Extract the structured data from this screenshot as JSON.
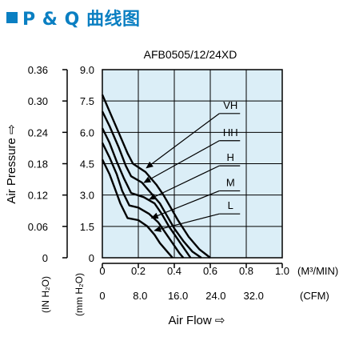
{
  "header": {
    "title": "P & Q 曲线图",
    "accent_color": "#0a7fc2"
  },
  "chart_data": {
    "type": "line",
    "title": "AFB0505/12/24XD",
    "plot_background": "#dbeef7",
    "grid": true,
    "x_axis": {
      "ticks_m3min": [
        "0",
        "0.2",
        "0.4",
        "0.6",
        "0.8",
        "1.0"
      ],
      "unit_m3min": "(M³/MIN)",
      "ticks_cfm": [
        "0",
        "8.0",
        "16.0",
        "24.0",
        "32.0"
      ],
      "unit_cfm": "(CFM)",
      "label": "Air Flow ⇨",
      "range_m3min": [
        0,
        1.0
      ]
    },
    "y_axis": {
      "ticks_inh2o": [
        "0.36",
        "0.30",
        "0.24",
        "0.18",
        "0.12",
        "0.06",
        "0"
      ],
      "unit_inh2o": "(IN H₂O)",
      "ticks_mmh2o": [
        "9.0",
        "7.5",
        "6.0",
        "4.5",
        "3.0",
        "1.5",
        "0"
      ],
      "unit_mmh2o": "(mm H₂O)",
      "label": "Air Pressure ⇨",
      "range_mmh2o": [
        0,
        9.0
      ]
    },
    "series": [
      {
        "name": "VH",
        "label_pos": [
          0.65,
          6.9
        ],
        "arrow_to": [
          0.245,
          4.3
        ],
        "points": [
          [
            0,
            7.8
          ],
          [
            0.04,
            7.0
          ],
          [
            0.09,
            6.0
          ],
          [
            0.14,
            5.0
          ],
          [
            0.17,
            4.5
          ],
          [
            0.24,
            4.1
          ],
          [
            0.3,
            3.5
          ],
          [
            0.34,
            3.0
          ],
          [
            0.38,
            2.4
          ],
          [
            0.42,
            1.8
          ],
          [
            0.48,
            1.0
          ],
          [
            0.54,
            0.4
          ],
          [
            0.6,
            0
          ]
        ]
      },
      {
        "name": "HH",
        "label_pos": [
          0.65,
          5.6
        ],
        "arrow_to": [
          0.232,
          3.6
        ],
        "points": [
          [
            0,
            7.0
          ],
          [
            0.04,
            6.3
          ],
          [
            0.09,
            5.3
          ],
          [
            0.13,
            4.4
          ],
          [
            0.16,
            3.9
          ],
          [
            0.22,
            3.6
          ],
          [
            0.28,
            3.0
          ],
          [
            0.32,
            2.6
          ],
          [
            0.36,
            2.0
          ],
          [
            0.4,
            1.4
          ],
          [
            0.45,
            0.8
          ],
          [
            0.5,
            0.3
          ],
          [
            0.55,
            0
          ]
        ]
      },
      {
        "name": "H",
        "label_pos": [
          0.65,
          4.4
        ],
        "arrow_to": [
          0.262,
          2.8
        ],
        "points": [
          [
            0,
            6.2
          ],
          [
            0.04,
            5.5
          ],
          [
            0.08,
            4.6
          ],
          [
            0.12,
            3.8
          ],
          [
            0.16,
            3.1
          ],
          [
            0.23,
            2.9
          ],
          [
            0.29,
            2.6
          ],
          [
            0.33,
            2.1
          ],
          [
            0.37,
            1.5
          ],
          [
            0.41,
            1.0
          ],
          [
            0.45,
            0.5
          ],
          [
            0.49,
            0
          ]
        ]
      },
      {
        "name": "M",
        "label_pos": [
          0.65,
          3.2
        ],
        "arrow_to": [
          0.274,
          1.9
        ],
        "points": [
          [
            0,
            5.5
          ],
          [
            0.04,
            4.8
          ],
          [
            0.08,
            4.0
          ],
          [
            0.11,
            3.2
          ],
          [
            0.15,
            2.5
          ],
          [
            0.2,
            2.4
          ],
          [
            0.26,
            2.1
          ],
          [
            0.31,
            1.7
          ],
          [
            0.35,
            1.2
          ],
          [
            0.39,
            0.7
          ],
          [
            0.43,
            0.2
          ],
          [
            0.45,
            0
          ]
        ]
      },
      {
        "name": "L",
        "label_pos": [
          0.65,
          2.1
        ],
        "arrow_to": [
          0.29,
          1.3
        ],
        "points": [
          [
            0,
            4.7
          ],
          [
            0.04,
            4.0
          ],
          [
            0.07,
            3.3
          ],
          [
            0.1,
            2.6
          ],
          [
            0.14,
            1.9
          ],
          [
            0.2,
            1.8
          ],
          [
            0.25,
            1.5
          ],
          [
            0.29,
            1.1
          ],
          [
            0.32,
            0.7
          ],
          [
            0.36,
            0.3
          ],
          [
            0.39,
            0
          ]
        ]
      }
    ]
  }
}
